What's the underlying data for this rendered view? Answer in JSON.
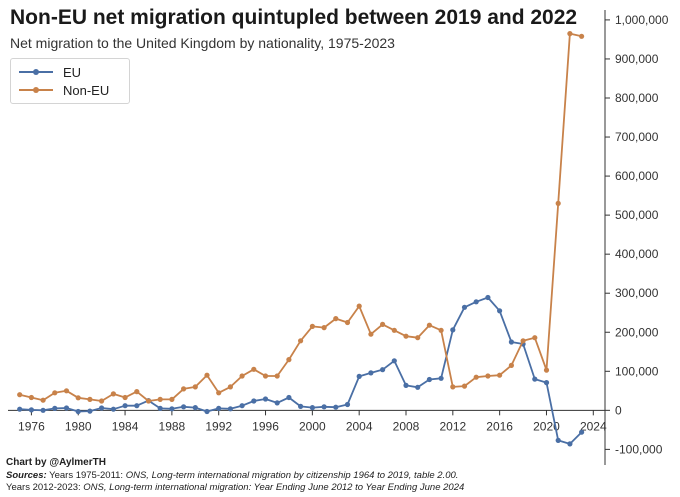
{
  "header": {
    "title": "Non-EU net migration quintupled between 2019 and 2022",
    "subtitle": "Net migration to the United Kingdom by nationality, 1975-2023"
  },
  "footer": {
    "credit": "Chart by @AylmerTH",
    "sources_label": "Sources:",
    "source1_prefix": "Years 1975-2011:",
    "source1_text": "ONS, Long-term international migration by citizenship 1964 to 2019, table 2.00.",
    "source2_prefix": "Years 2012-2023:",
    "source2_text": "ONS, Long-term international migration: Year Ending June 2012 to Year Ending June 2024"
  },
  "colors": {
    "eu": "#4a6fa5",
    "non_eu": "#c8824a",
    "axis": "#333333"
  },
  "chart_data": {
    "type": "line",
    "title": "Non-EU net migration quintupled between 2019 and 2022",
    "subtitle": "Net migration to the United Kingdom by nationality, 1975-2023",
    "xlim": [
      1974,
      2025
    ],
    "ylim": [
      -140000,
      1010000
    ],
    "x_ticks": [
      1976,
      1980,
      1984,
      1988,
      1992,
      1996,
      2000,
      2004,
      2008,
      2012,
      2016,
      2020,
      2024
    ],
    "y_ticks": [
      -100000,
      0,
      100000,
      200000,
      300000,
      400000,
      500000,
      600000,
      700000,
      800000,
      900000,
      1000000
    ],
    "y_tick_labels": [
      "-100,000",
      "0",
      "100,000",
      "200,000",
      "300,000",
      "400,000",
      "500,000",
      "600,000",
      "700,000",
      "800,000",
      "900,000",
      "1,000,000"
    ],
    "y_axis_side": "right",
    "grid": false,
    "legend_position": "top-left",
    "x": [
      1975,
      1976,
      1977,
      1978,
      1979,
      1980,
      1981,
      1982,
      1983,
      1984,
      1985,
      1986,
      1987,
      1988,
      1989,
      1990,
      1991,
      1992,
      1993,
      1994,
      1995,
      1996,
      1997,
      1998,
      1999,
      2000,
      2001,
      2002,
      2003,
      2004,
      2005,
      2006,
      2007,
      2008,
      2009,
      2010,
      2011,
      2012,
      2013,
      2014,
      2015,
      2016,
      2017,
      2018,
      2019,
      2020,
      2021,
      2022,
      2023
    ],
    "series": [
      {
        "name": "EU",
        "color": "#4a6fa5",
        "values": [
          3000,
          1000,
          0,
          5000,
          6000,
          -3000,
          -2000,
          6000,
          3000,
          12000,
          12000,
          25000,
          5000,
          4000,
          9000,
          7000,
          -3000,
          5000,
          4000,
          12000,
          24000,
          29000,
          19000,
          33000,
          10000,
          7000,
          9000,
          8000,
          15000,
          87000,
          96000,
          104000,
          127000,
          64000,
          59000,
          79000,
          82000,
          206000,
          264000,
          278000,
          289000,
          255000,
          175000,
          170000,
          80000,
          71000,
          -77000,
          -86000,
          -56000
        ]
      },
      {
        "name": "Non-EU",
        "color": "#c8824a",
        "values": [
          40000,
          33000,
          26000,
          45000,
          50000,
          32000,
          28000,
          24000,
          42000,
          33000,
          48000,
          24000,
          28000,
          28000,
          55000,
          60000,
          90000,
          45000,
          60000,
          88000,
          105000,
          88000,
          88000,
          130000,
          178000,
          215000,
          212000,
          235000,
          225000,
          267000,
          195000,
          220000,
          205000,
          190000,
          186000,
          218000,
          205000,
          60000,
          62000,
          85000,
          88000,
          90000,
          115000,
          178000,
          186000,
          103000,
          530000,
          965000,
          958000
        ]
      }
    ]
  }
}
